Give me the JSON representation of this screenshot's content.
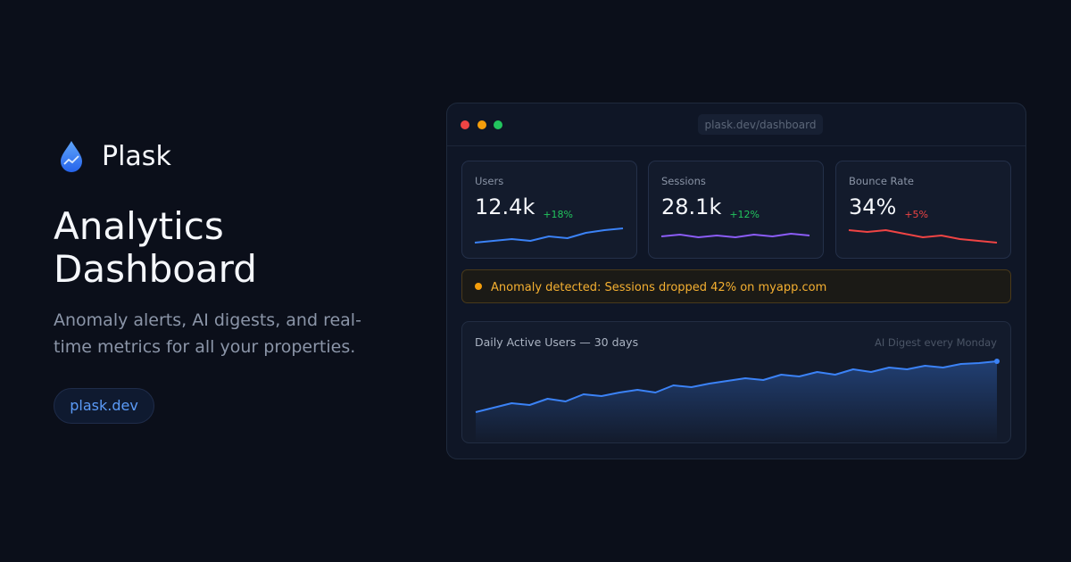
{
  "brand": {
    "name": "Plask"
  },
  "hero": {
    "title": "Analytics Dashboard",
    "subtitle": "Anomaly alerts, AI digests, and real-time metrics for all your properties.",
    "link": "plask.dev"
  },
  "window": {
    "url": "plask.dev/dashboard"
  },
  "metrics": [
    {
      "label": "Users",
      "value": "12.4k",
      "change": "+18%",
      "trend": "up",
      "color": "#3b82f6",
      "sparkline": [
        28,
        30,
        32,
        30,
        35,
        33,
        39,
        42,
        44
      ]
    },
    {
      "label": "Sessions",
      "value": "28.1k",
      "change": "+12%",
      "trend": "up",
      "color": "#8b5cf6",
      "sparkline": [
        35,
        37,
        34,
        36,
        34,
        37,
        35,
        38,
        36
      ]
    },
    {
      "label": "Bounce Rate",
      "value": "34%",
      "change": "+5%",
      "trend": "down",
      "color": "#ef4444",
      "sparkline": [
        42,
        40,
        42,
        38,
        34,
        36,
        32,
        30,
        28
      ]
    }
  ],
  "alert": {
    "text": "Anomaly detected: Sessions dropped 42% on myapp.com"
  },
  "chart_data": {
    "type": "area",
    "title": "Daily Active Users — 30 days",
    "note": "AI Digest every Monday",
    "color": "#3b82f6",
    "values": [
      38,
      43,
      48,
      46,
      53,
      50,
      58,
      56,
      60,
      63,
      60,
      68,
      66,
      70,
      73,
      76,
      74,
      80,
      78,
      83,
      80,
      86,
      83,
      88,
      86,
      90,
      88,
      92,
      93,
      95
    ]
  }
}
